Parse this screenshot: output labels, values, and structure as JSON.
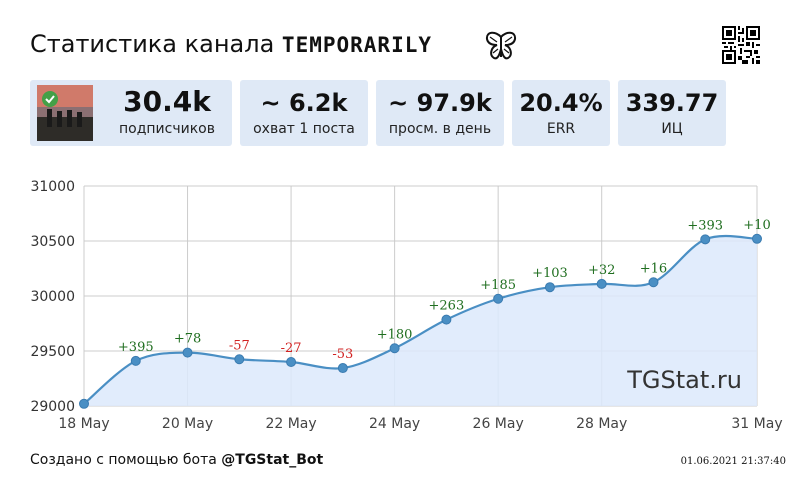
{
  "header": {
    "title_prefix": "Статистика канала",
    "channel_name": "TEMPORARILY",
    "icon": "butterfly-icon",
    "qr_icon": "qr-code-icon"
  },
  "cards": {
    "subscribers": {
      "value": "30.4k",
      "label": "подписчиков"
    },
    "reach": {
      "value": "~ 6.2k",
      "label": "охват 1 поста"
    },
    "views": {
      "value": "~ 97.9k",
      "label": "просм. в день"
    },
    "err": {
      "value": "20.4%",
      "label": "ERR"
    },
    "ic": {
      "value": "339.77",
      "label": "ИЦ"
    }
  },
  "chart_data": {
    "type": "area",
    "title": "",
    "xlabel": "",
    "ylabel": "",
    "ylim": [
      29000,
      31000
    ],
    "yticks": [
      29000,
      29500,
      30000,
      30500,
      31000
    ],
    "x": [
      "18 May",
      "19 May",
      "20 May",
      "21 May",
      "22 May",
      "23 May",
      "24 May",
      "25 May",
      "26 May",
      "27 May",
      "28 May",
      "29 May",
      "30 May",
      "31 May"
    ],
    "xtick_labels": [
      "18 May",
      "20 May",
      "22 May",
      "24 May",
      "26 May",
      "28 May",
      "31 May"
    ],
    "values": [
      29020,
      29410,
      29485,
      29425,
      29400,
      29345,
      29525,
      29785,
      29975,
      30080,
      30110,
      30125,
      30515,
      30520
    ],
    "point_labels": [
      "",
      "+395",
      "+78",
      "-57",
      "-27",
      "-53",
      "+180",
      "+263",
      "+185",
      "+103",
      "+32",
      "+16",
      "+393",
      "+10"
    ],
    "grid": true,
    "watermark": "TGStat.ru",
    "colors": {
      "line": "#4a8fc4",
      "fill": "#dce9fb",
      "positive": "#1f6e1f",
      "negative": "#d22222",
      "grid": "#cccccc"
    }
  },
  "footer": {
    "created_prefix": "Создано с помощью бота",
    "bot_name": "@TGStat_Bot",
    "timestamp": "01.06.2021 21:37:40"
  }
}
